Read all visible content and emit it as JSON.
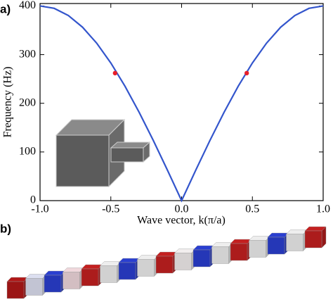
{
  "panel_labels": [
    "a)",
    "b)"
  ],
  "chart_data": {
    "type": "line",
    "xlabel": "Wave vector, k(π/a)",
    "ylabel": "Frequency (Hz)",
    "xlim": [
      -1,
      1
    ],
    "ylim": [
      0,
      405
    ],
    "xticks": [
      {
        "value": -1,
        "label": "-1.0"
      },
      {
        "value": -0.5,
        "label": "-0.5"
      },
      {
        "value": 0,
        "label": "0.0"
      },
      {
        "value": 0.5,
        "label": "0.5"
      },
      {
        "value": 1,
        "label": "1.0"
      }
    ],
    "yticks": [
      0,
      100,
      200,
      300,
      400
    ],
    "series": [
      {
        "color": "#3355cc",
        "x": [
          -1,
          -0.9,
          -0.8,
          -0.7,
          -0.6,
          -0.5,
          -0.4,
          -0.3,
          -0.2,
          -0.1,
          0,
          0.1,
          0.2,
          0.3,
          0.4,
          0.5,
          0.6,
          0.7,
          0.8,
          0.9,
          1
        ],
        "values": [
          400,
          395.1,
          380.4,
          356.4,
          323.6,
          282.8,
          235.1,
          181.6,
          123.6,
          62.6,
          0,
          62.6,
          123.6,
          181.6,
          235.1,
          282.8,
          323.6,
          356.4,
          380.4,
          395.1,
          400
        ]
      },
      {
        "color": "#e8202a",
        "marker": "dot",
        "x": [
          -0.47,
          0.46
        ],
        "values": [
          262,
          262
        ]
      }
    ]
  }
}
